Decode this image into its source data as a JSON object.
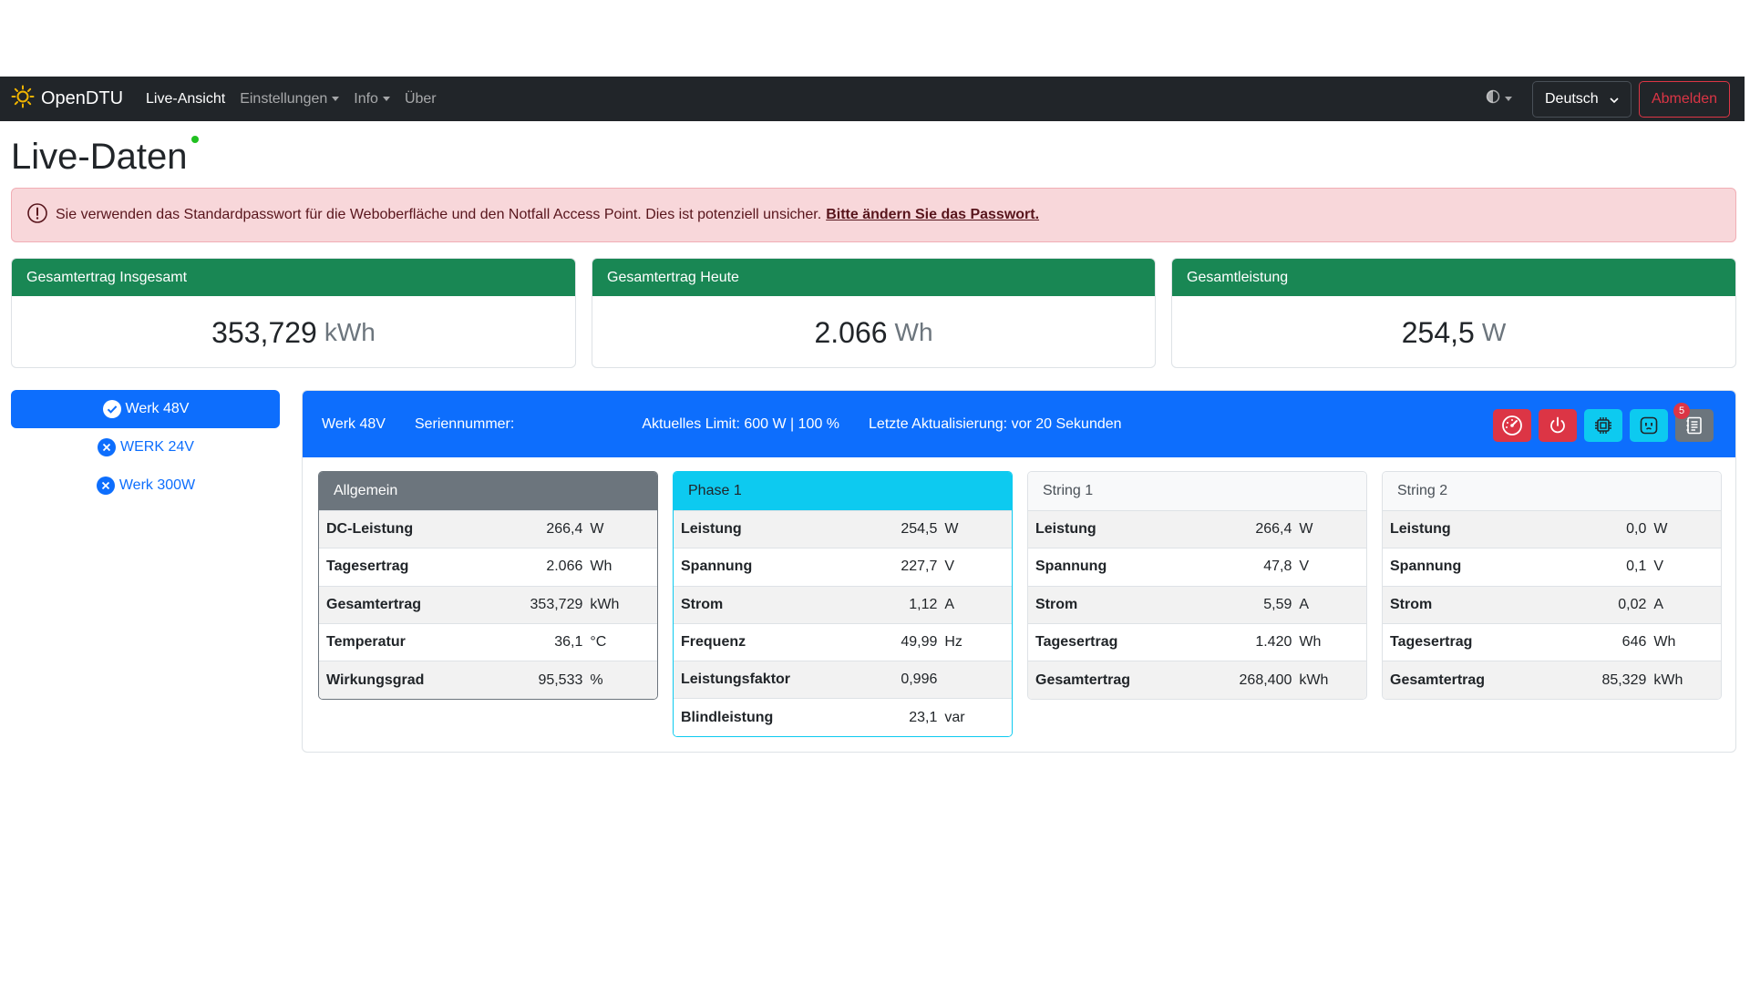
{
  "nav": {
    "brand": "OpenDTU",
    "links": [
      {
        "label": "Live-Ansicht",
        "dropdown": false,
        "active": true
      },
      {
        "label": "Einstellungen",
        "dropdown": true,
        "active": false
      },
      {
        "label": "Info",
        "dropdown": true,
        "active": false
      },
      {
        "label": "Über",
        "dropdown": false,
        "active": false
      }
    ],
    "language": "Deutsch",
    "logout": "Abmelden"
  },
  "page": {
    "title": "Live-Daten"
  },
  "alert": {
    "text": "Sie verwenden das Standardpasswort für die Weboberfläche und den Notfall Access Point. Dies ist potenziell unsicher.",
    "link": "Bitte ändern Sie das Passwort."
  },
  "stats": [
    {
      "title": "Gesamtertrag Insgesamt",
      "value": "353,729",
      "unit": "kWh"
    },
    {
      "title": "Gesamtertrag Heute",
      "value": "2.066",
      "unit": "Wh"
    },
    {
      "title": "Gesamtleistung",
      "value": "254,5",
      "unit": "W"
    }
  ],
  "inverters": [
    {
      "name": "Werk 48V",
      "status": "ok",
      "active": true
    },
    {
      "name": "WERK 24V",
      "status": "error",
      "active": false
    },
    {
      "name": "Werk 300W",
      "status": "error",
      "active": false
    }
  ],
  "inverter_header": {
    "name": "Werk 48V",
    "serial_label": "Seriennummer:",
    "limit": "Aktuelles Limit: 600 W | 100 %",
    "update": "Letzte Aktualisierung: vor 20 Sekunden",
    "event_count": "5"
  },
  "panels": [
    {
      "title": "Allgemein",
      "rows": [
        {
          "label": "DC-Leistung",
          "value": "266,4",
          "unit": "W"
        },
        {
          "label": "Tagesertrag",
          "value": "2.066",
          "unit": "Wh"
        },
        {
          "label": "Gesamtertrag",
          "value": "353,729",
          "unit": "kWh"
        },
        {
          "label": "Temperatur",
          "value": "36,1",
          "unit": "°C"
        },
        {
          "label": "Wirkungsgrad",
          "value": "95,533",
          "unit": "%"
        }
      ]
    },
    {
      "title": "Phase 1",
      "rows": [
        {
          "label": "Leistung",
          "value": "254,5",
          "unit": "W"
        },
        {
          "label": "Spannung",
          "value": "227,7",
          "unit": "V"
        },
        {
          "label": "Strom",
          "value": "1,12",
          "unit": "A"
        },
        {
          "label": "Frequenz",
          "value": "49,99",
          "unit": "Hz"
        },
        {
          "label": "Leistungsfaktor",
          "value": "0,996",
          "unit": ""
        },
        {
          "label": "Blindleistung",
          "value": "23,1",
          "unit": "var"
        }
      ]
    },
    {
      "title": "String 1",
      "rows": [
        {
          "label": "Leistung",
          "value": "266,4",
          "unit": "W"
        },
        {
          "label": "Spannung",
          "value": "47,8",
          "unit": "V"
        },
        {
          "label": "Strom",
          "value": "5,59",
          "unit": "A"
        },
        {
          "label": "Tagesertrag",
          "value": "1.420",
          "unit": "Wh"
        },
        {
          "label": "Gesamtertrag",
          "value": "268,400",
          "unit": "kWh"
        }
      ]
    },
    {
      "title": "String 2",
      "rows": [
        {
          "label": "Leistung",
          "value": "0,0",
          "unit": "W"
        },
        {
          "label": "Spannung",
          "value": "0,1",
          "unit": "V"
        },
        {
          "label": "Strom",
          "value": "0,02",
          "unit": "A"
        },
        {
          "label": "Tagesertrag",
          "value": "646",
          "unit": "Wh"
        },
        {
          "label": "Gesamtertrag",
          "value": "85,329",
          "unit": "kWh"
        }
      ]
    }
  ],
  "colors": {
    "navbar": "#212529",
    "primary": "#0d6efd",
    "success": "#198754",
    "danger": "#dc3545",
    "info": "#0dcaf0",
    "secondary": "#6c757d",
    "alert_bg": "#f8d7da"
  }
}
